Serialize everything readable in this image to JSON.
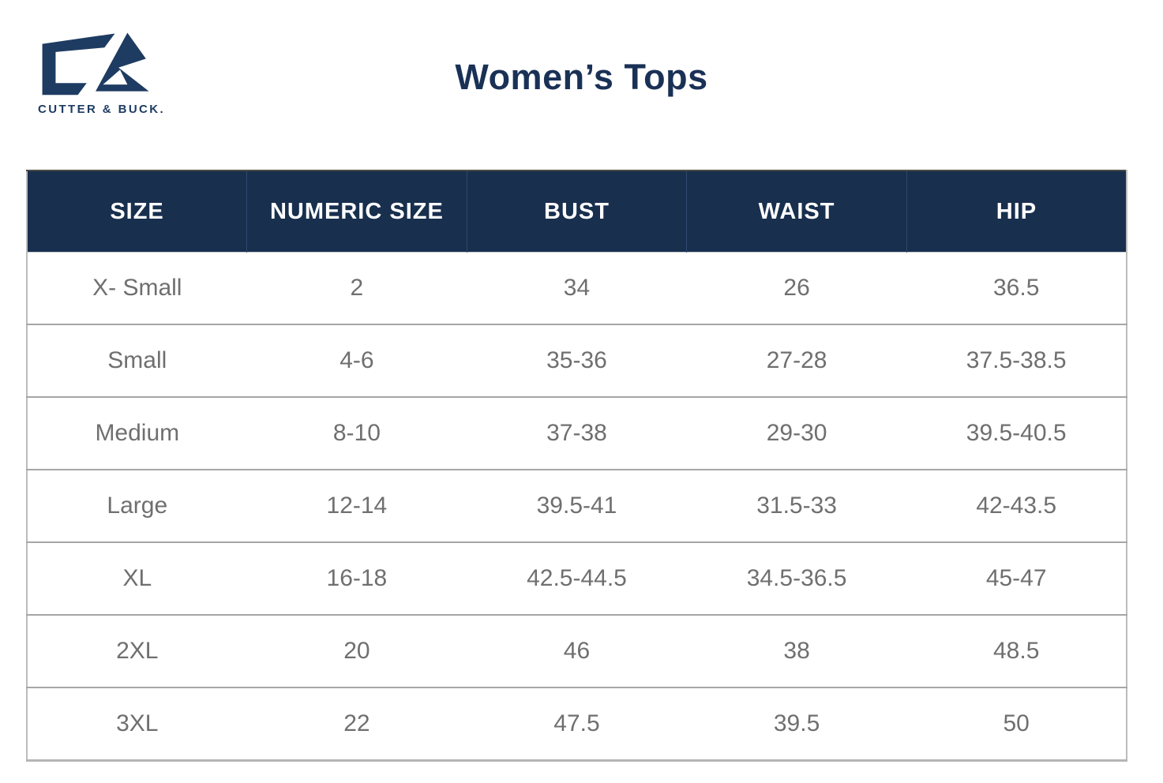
{
  "brand": {
    "name": "CUTTER & BUCK.",
    "monogram_icon": "cutter-buck-cb-monogram"
  },
  "header": {
    "title": "Women’s Tops"
  },
  "colors": {
    "header_navy": "#182f4e",
    "title_navy": "#1a3156",
    "logo_navy": "#1e3c62",
    "cell_text_gray": "#6f6f6f",
    "row_divider_gray": "#a6a6a6"
  },
  "chart_data": {
    "type": "table",
    "title": "Women’s Tops",
    "columns": [
      "SIZE",
      "NUMERIC SIZE",
      "BUST",
      "WAIST",
      "HIP"
    ],
    "rows": [
      [
        "X- Small",
        "2",
        "34",
        "26",
        "36.5"
      ],
      [
        "Small",
        "4-6",
        "35-36",
        "27-28",
        "37.5-38.5"
      ],
      [
        "Medium",
        "8-10",
        "37-38",
        "29-30",
        "39.5-40.5"
      ],
      [
        "Large",
        "12-14",
        "39.5-41",
        "31.5-33",
        "42-43.5"
      ],
      [
        "XL",
        "16-18",
        "42.5-44.5",
        "34.5-36.5",
        "45-47"
      ],
      [
        "2XL",
        "20",
        "46",
        "38",
        "48.5"
      ],
      [
        "3XL",
        "22",
        "47.5",
        "39.5",
        "50"
      ]
    ],
    "layout": {
      "header_background": "#182f4e",
      "header_text_color": "#ffffff",
      "grid": "horizontal-only",
      "column_widths": "equal"
    }
  }
}
